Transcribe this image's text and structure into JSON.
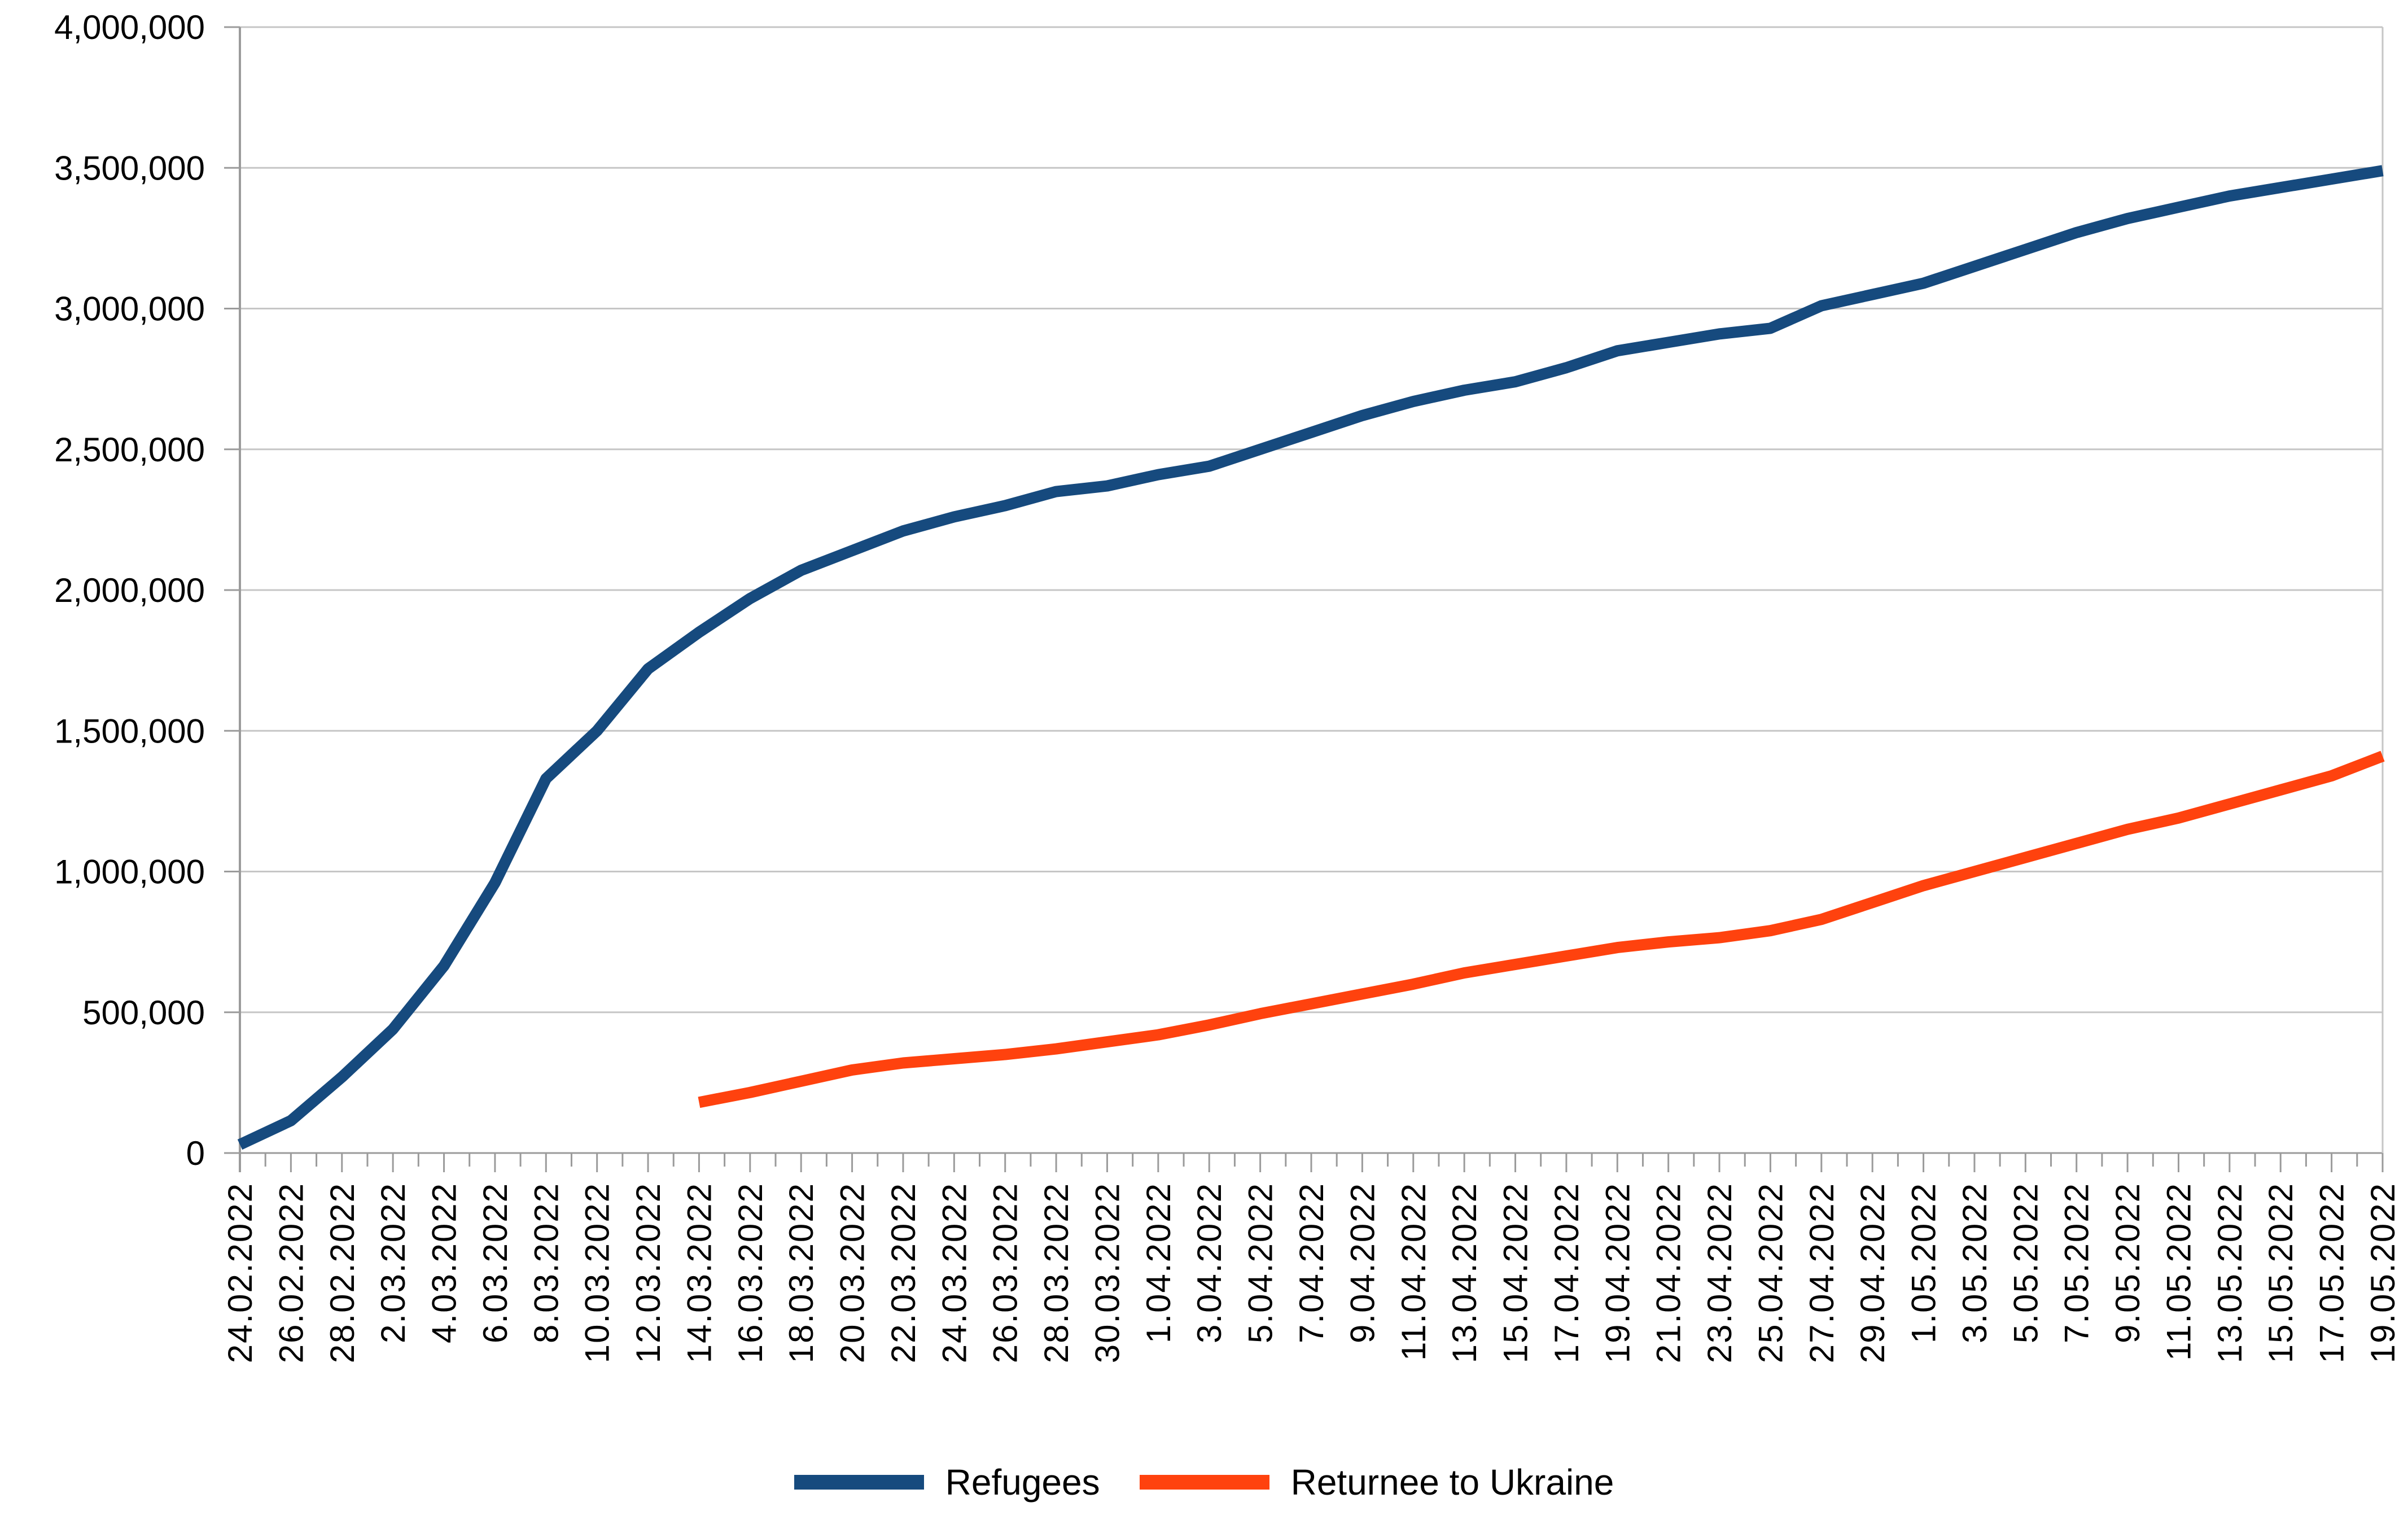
{
  "chart_data": {
    "type": "line",
    "title": "",
    "xlabel": "",
    "ylabel": "",
    "grid": "horizontal",
    "legend_position": "bottom-center",
    "background_color": "#ffffff",
    "gridline_color": "#c6c6c6",
    "axis_color": "#9b9b9b",
    "y_axis": {
      "min": 0,
      "max": 4000000,
      "step": 500000,
      "tick_labels": [
        "0",
        "500,000",
        "1,000,000",
        "1,500,000",
        "2,000,000",
        "2,500,000",
        "3,000,000",
        "3,500,000",
        "4,000,000"
      ]
    },
    "x_axis": {
      "tick_label_rotation_degrees": 90,
      "minor_tick_every_days": 1,
      "labeled_tick_every_days": 2
    },
    "categories": [
      "24.02.2022",
      "26.02.2022",
      "28.02.2022",
      "2.03.2022",
      "4.03.2022",
      "6.03.2022",
      "8.03.2022",
      "10.03.2022",
      "12.03.2022",
      "14.03.2022",
      "16.03.2022",
      "18.03.2022",
      "20.03.2022",
      "22.03.2022",
      "24.03.2022",
      "26.03.2022",
      "28.03.2022",
      "30.03.2022",
      "1.04.2022",
      "3.04.2022",
      "5.04.2022",
      "7.04.2022",
      "9.04.2022",
      "11.04.2022",
      "13.04.2022",
      "15.04.2022",
      "17.04.2022",
      "19.04.2022",
      "21.04.2022",
      "23.04.2022",
      "25.04.2022",
      "27.04.2022",
      "29.04.2022",
      "1.05.2022",
      "3.05.2022",
      "5.05.2022",
      "7.05.2022",
      "9.05.2022",
      "11.05.2022",
      "13.05.2022",
      "15.05.2022",
      "17.05.2022",
      "19.05.2022"
    ],
    "series": [
      {
        "name": "Refugees",
        "color": "#164a7e",
        "values": [
          30000,
          115000,
          270000,
          440000,
          665000,
          960000,
          1330000,
          1500000,
          1720000,
          1850000,
          1970000,
          2070000,
          2140000,
          2210000,
          2260000,
          2300000,
          2350000,
          2370000,
          2410000,
          2440000,
          2500000,
          2560000,
          2620000,
          2670000,
          2710000,
          2740000,
          2790000,
          2850000,
          2880000,
          2910000,
          2930000,
          3010000,
          3050000,
          3090000,
          3150000,
          3210000,
          3270000,
          3320000,
          3360000,
          3400000,
          3430000,
          3460000,
          3490000
        ]
      },
      {
        "name": "Returnee to Ukraine",
        "color": "#ff420e",
        "values": [
          null,
          null,
          null,
          null,
          null,
          null,
          null,
          null,
          null,
          180000,
          215000,
          255000,
          295000,
          320000,
          335000,
          350000,
          370000,
          395000,
          420000,
          455000,
          495000,
          530000,
          565000,
          600000,
          640000,
          670000,
          700000,
          730000,
          750000,
          765000,
          790000,
          830000,
          890000,
          950000,
          1000000,
          1050000,
          1100000,
          1150000,
          1190000,
          1240000,
          1290000,
          1340000,
          1410000
        ]
      }
    ]
  }
}
